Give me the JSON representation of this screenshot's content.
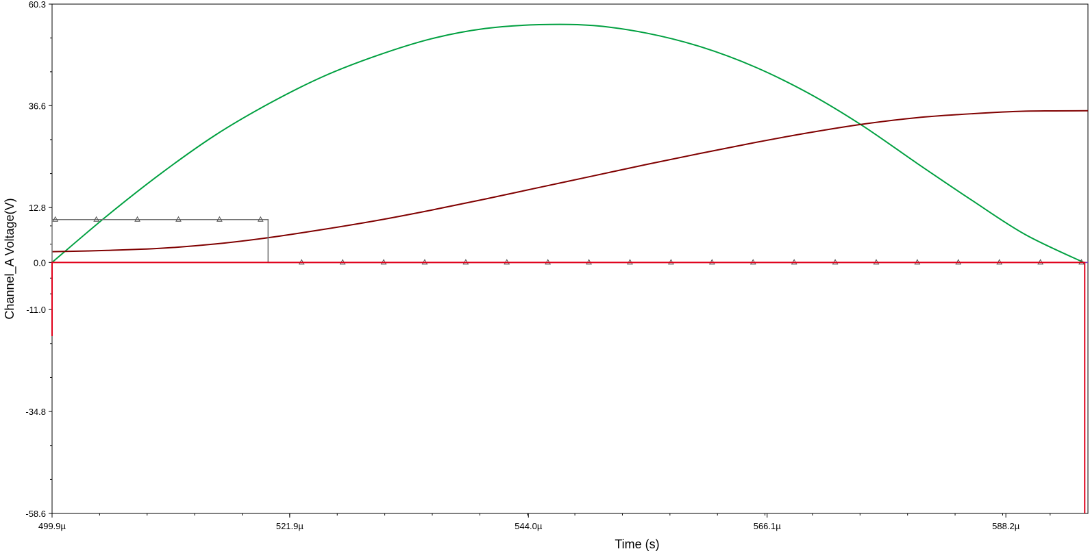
{
  "chart_data": {
    "type": "line",
    "title": "",
    "xlabel": "Time (s)",
    "ylabel": "Channel_A Voltage(V)",
    "xlim": [
      499.9,
      595.8
    ],
    "ylim": [
      -58.6,
      60.3
    ],
    "x_unit_suffix": "µ",
    "x_ticks": [
      499.9,
      521.9,
      544.0,
      566.1,
      588.2
    ],
    "x_tick_labels": [
      "499.9µ",
      "521.9µ",
      "544.0µ",
      "566.1µ",
      "588.2µ"
    ],
    "y_ticks": [
      60.3,
      36.6,
      12.8,
      0.0,
      -11.0,
      -34.8,
      -58.6
    ],
    "y_tick_labels": [
      "60.3",
      "36.6",
      "12.8",
      "0.0",
      "-11.0",
      "-34.8",
      "-58.6"
    ],
    "grid": false,
    "legend": "none",
    "series": [
      {
        "color": "#00a040",
        "x": [
          499.9,
          505,
          510,
          515,
          520,
          525,
          530,
          535,
          540,
          545,
          550,
          555,
          560,
          565,
          570,
          575,
          580,
          585,
          590,
          595.4
        ],
        "values": [
          0,
          10.9,
          20.8,
          29.7,
          37.1,
          43.4,
          48.3,
          52.2,
          54.6,
          55.5,
          55.3,
          53.5,
          50.3,
          45.6,
          39.4,
          31.8,
          23.1,
          14.6,
          6.5,
          0
        ]
      },
      {
        "color": "#800000",
        "x": [
          499.9,
          505,
          510,
          515,
          520,
          525,
          530,
          535,
          540,
          545,
          550,
          555,
          560,
          565,
          570,
          575,
          580,
          585,
          590,
          595.8
        ],
        "values": [
          2.5,
          2.8,
          3.3,
          4.3,
          5.8,
          7.7,
          9.8,
          12.2,
          14.8,
          17.5,
          20.2,
          22.9,
          25.5,
          28.0,
          30.3,
          32.3,
          33.8,
          34.7,
          35.3,
          35.4
        ]
      },
      {
        "color": "#707070",
        "markers": "triangle",
        "x": [
          499.9,
          499.9,
          519.9,
          519.9,
          595.8
        ],
        "values": [
          0,
          10.0,
          10.0,
          0,
          0
        ],
        "marker_x": [
          500.2,
          504.0,
          507.8,
          511.6,
          515.4,
          519.2,
          523.0,
          526.8,
          530.6,
          534.4,
          538.2,
          542.0,
          545.8,
          549.6,
          553.4,
          557.2,
          561.0,
          564.8,
          568.6,
          572.4,
          576.2,
          580.0,
          583.8,
          587.6,
          591.4,
          595.2
        ],
        "marker_values": [
          10.0,
          10.0,
          10.0,
          10.0,
          10.0,
          10.0,
          0,
          0,
          0,
          0,
          0,
          0,
          0,
          0,
          0,
          0,
          0,
          0,
          0,
          0,
          0,
          0,
          0,
          0,
          0,
          0
        ]
      },
      {
        "color": "#8040c0",
        "x": [
          519.9,
          595.8
        ],
        "values": [
          0,
          0
        ]
      },
      {
        "color": "#e0001a",
        "x": [
          499.9,
          499.9,
          499.9,
          595.5,
          595.5,
          595.5
        ],
        "values": [
          -17.2,
          0,
          0,
          0,
          -58.6,
          0
        ]
      }
    ]
  }
}
